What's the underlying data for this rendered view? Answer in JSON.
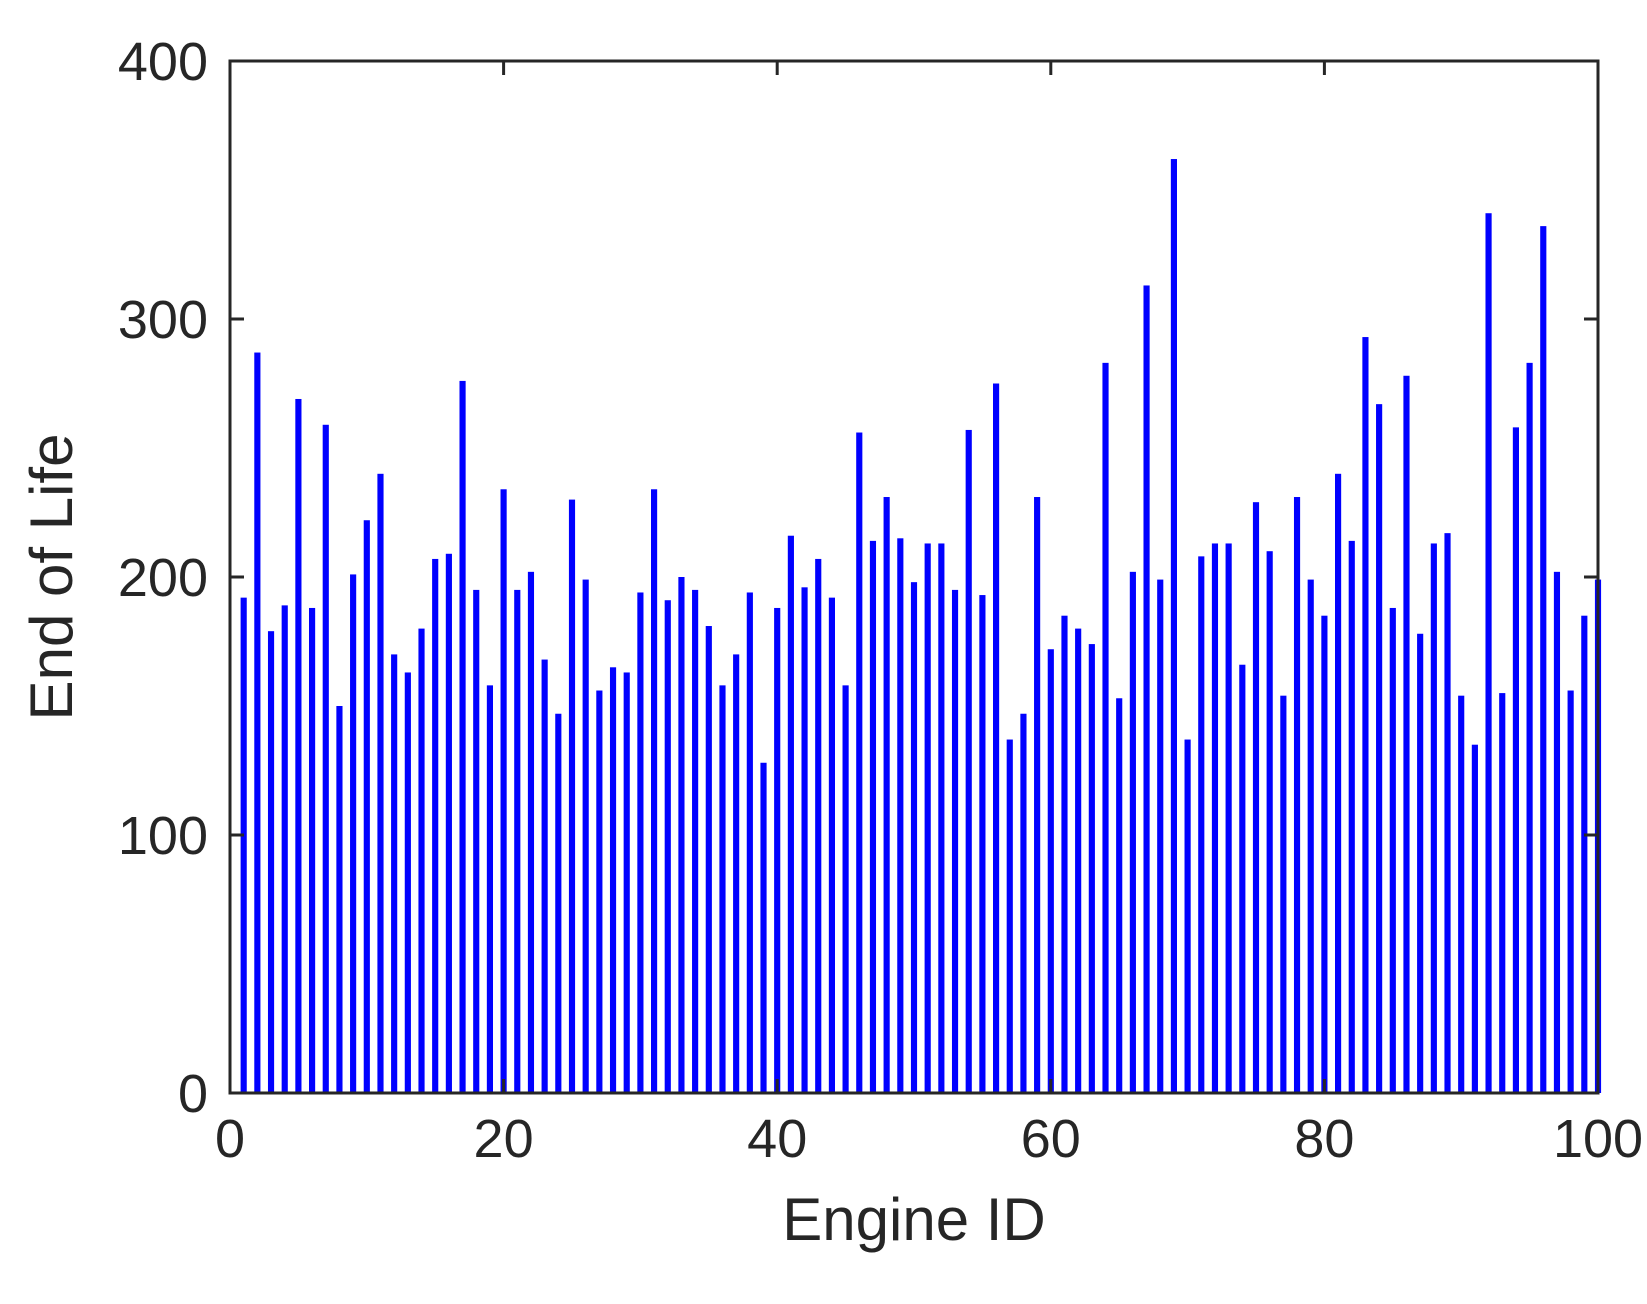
{
  "chart_data": {
    "type": "bar",
    "xlabel": "Engine ID",
    "ylabel": "End of Life",
    "xlim": [
      0,
      100
    ],
    "ylim": [
      0,
      400
    ],
    "xticks": [
      0,
      20,
      40,
      60,
      80,
      100
    ],
    "yticks": [
      0,
      100,
      200,
      300,
      400
    ],
    "xtick_labels": [
      "0",
      "20",
      "40",
      "60",
      "80",
      "100"
    ],
    "ytick_labels": [
      "0",
      "100",
      "200",
      "300",
      "400"
    ],
    "grid": false,
    "bar_color": "#0000ff",
    "categories": [
      1,
      2,
      3,
      4,
      5,
      6,
      7,
      8,
      9,
      10,
      11,
      12,
      13,
      14,
      15,
      16,
      17,
      18,
      19,
      20,
      21,
      22,
      23,
      24,
      25,
      26,
      27,
      28,
      29,
      30,
      31,
      32,
      33,
      34,
      35,
      36,
      37,
      38,
      39,
      40,
      41,
      42,
      43,
      44,
      45,
      46,
      47,
      48,
      49,
      50,
      51,
      52,
      53,
      54,
      55,
      56,
      57,
      58,
      59,
      60,
      61,
      62,
      63,
      64,
      65,
      66,
      67,
      68,
      69,
      70,
      71,
      72,
      73,
      74,
      75,
      76,
      77,
      78,
      79,
      80,
      81,
      82,
      83,
      84,
      85,
      86,
      87,
      88,
      89,
      90,
      91,
      92,
      93,
      94,
      95,
      96,
      97,
      98,
      99,
      100
    ],
    "values": [
      192,
      287,
      179,
      189,
      269,
      188,
      259,
      150,
      201,
      222,
      240,
      170,
      163,
      180,
      207,
      209,
      276,
      195,
      158,
      234,
      195,
      202,
      168,
      147,
      230,
      199,
      156,
      165,
      163,
      194,
      234,
      191,
      200,
      195,
      181,
      158,
      170,
      194,
      128,
      188,
      216,
      196,
      207,
      192,
      158,
      256,
      214,
      231,
      215,
      198,
      213,
      213,
      195,
      257,
      193,
      275,
      137,
      147,
      231,
      172,
      185,
      180,
      174,
      283,
      153,
      202,
      313,
      199,
      362,
      137,
      208,
      213,
      213,
      166,
      229,
      210,
      154,
      231,
      199,
      185,
      240,
      214,
      293,
      267,
      188,
      278,
      178,
      213,
      217,
      154,
      135,
      341,
      155,
      258,
      283,
      336,
      202,
      156,
      185,
      199
    ]
  }
}
